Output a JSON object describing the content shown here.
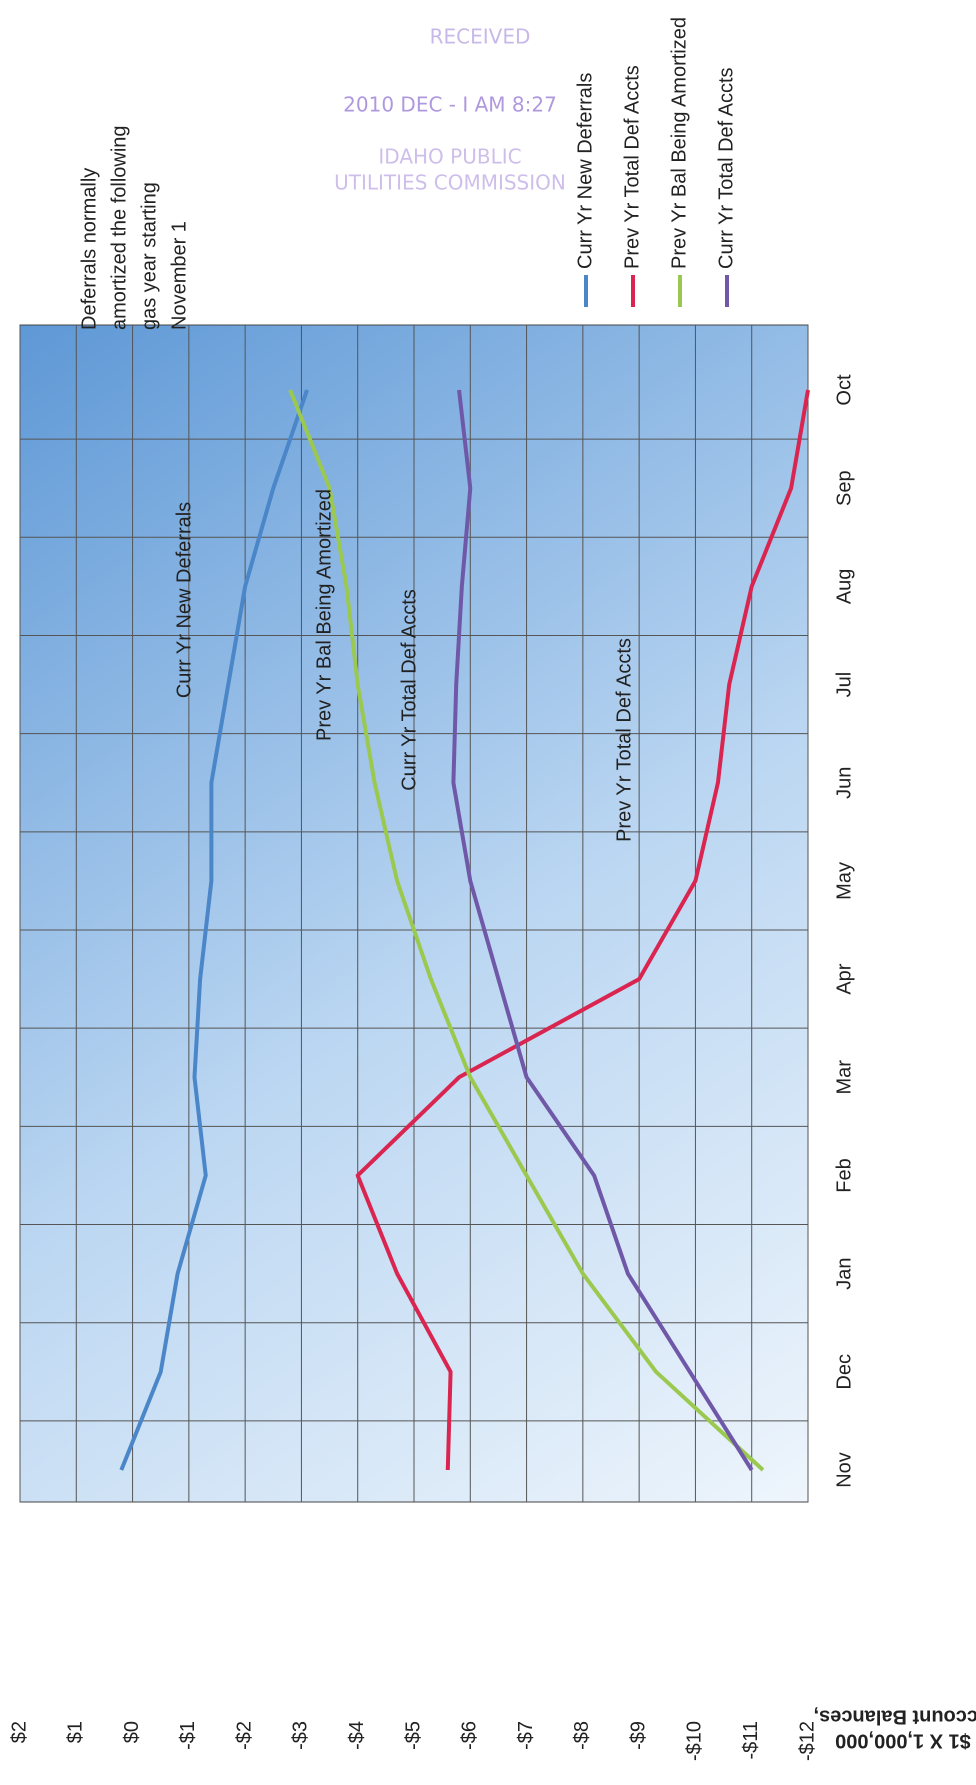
{
  "chart_data": {
    "type": "line",
    "y_label": [
      "Account Balances,",
      "$1 X 1,000,000"
    ],
    "categories": [
      "Nov",
      "Dec",
      "Jan",
      "Feb",
      "Mar",
      "Apr",
      "May",
      "Jun",
      "Jul",
      "Aug",
      "Sep",
      "Oct"
    ],
    "series": [
      {
        "name": "Curr Yr New Deferrals",
        "color": "#4a86c8",
        "values": [
          0.2,
          -0.5,
          -0.8,
          -1.3,
          -1.1,
          -1.2,
          -1.4,
          -1.4,
          -1.7,
          -2.0,
          -2.5,
          -3.1
        ]
      },
      {
        "name": "Prev Yr Total Def Accts",
        "color": "#d9254f",
        "values": [
          -5.6,
          -5.65,
          -4.7,
          -4.0,
          -5.8,
          -9.0,
          -10.0,
          -10.4,
          -10.6,
          -11.0,
          -11.7,
          -12.0
        ]
      },
      {
        "name": "Prev Yr Bal Being Amortized",
        "color": "#9bc94f",
        "values": [
          -11.2,
          -9.3,
          -8.0,
          -7.0,
          -6.0,
          -5.3,
          -4.7,
          -4.3,
          -4.0,
          -3.8,
          -3.5,
          -2.8
        ]
      },
      {
        "name": "Curr Yr Total Def Accts",
        "color": "#7058a8",
        "values": [
          -11.0,
          -9.9,
          -8.8,
          -8.2,
          -7.0,
          -6.5,
          -6.0,
          -5.7,
          -5.75,
          -5.85,
          -6.0,
          -5.8
        ]
      }
    ],
    "ylim": [
      2,
      -12
    ],
    "yticks": [
      {
        "value": 2,
        "label": "$2"
      },
      {
        "value": 1,
        "label": "$1"
      },
      {
        "value": 0,
        "label": "$0"
      },
      {
        "value": -1,
        "label": "-$1"
      },
      {
        "value": -2,
        "label": "-$2"
      },
      {
        "value": -3,
        "label": "-$3"
      },
      {
        "value": -4,
        "label": "-$4"
      },
      {
        "value": -5,
        "label": "-$5"
      },
      {
        "value": -6,
        "label": "-$6"
      },
      {
        "value": -7,
        "label": "-$7"
      },
      {
        "value": -8,
        "label": "-$8"
      },
      {
        "value": -9,
        "label": "-$9"
      },
      {
        "value": -10,
        "label": "-$10"
      },
      {
        "value": -11,
        "label": "-$11"
      },
      {
        "value": -12,
        "label": "-$12"
      }
    ],
    "grid": true,
    "annotations": [
      "Curr Yr New Deferrals",
      "Prev Yr Bal Being Amortized",
      "Curr Yr Total Def Accts",
      "Prev Yr Total Def Accts"
    ],
    "note": [
      "Deferrals normally",
      "amortized the following",
      "gas year starting",
      "November 1"
    ],
    "stamp": [
      "RECEIVED",
      "2010 DEC - I  AM 8:27",
      "IDAHO PUBLIC",
      "UTILITIES COMMISSION"
    ]
  }
}
